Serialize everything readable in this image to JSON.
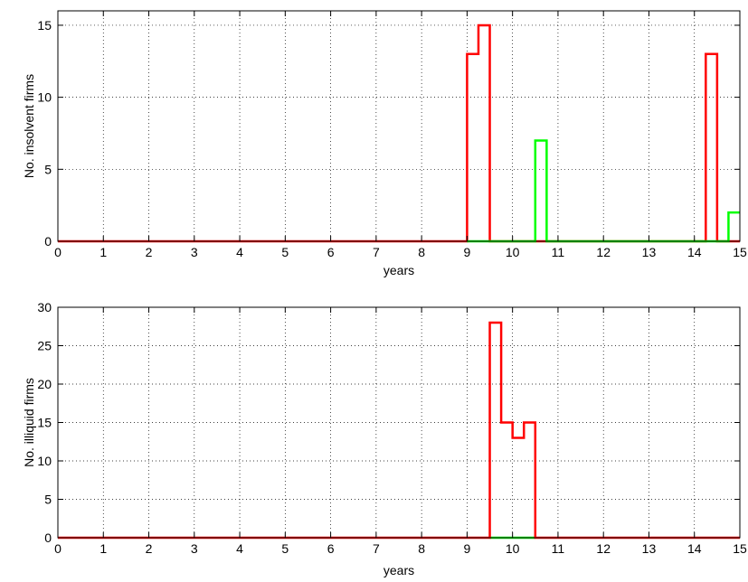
{
  "chart_data": [
    {
      "type": "line",
      "step": true,
      "title": "",
      "xlabel": "years",
      "ylabel": "No. insolvent firms",
      "xlim": [
        0,
        15
      ],
      "ylim": [
        0,
        16
      ],
      "xticks": [
        0,
        1,
        2,
        3,
        4,
        5,
        6,
        7,
        8,
        9,
        10,
        11,
        12,
        13,
        14,
        15
      ],
      "yticks": [
        0,
        5,
        10,
        15
      ],
      "grid": true,
      "series": [
        {
          "color": "#ff0000",
          "points": [
            [
              0,
              0
            ],
            [
              9,
              0
            ],
            [
              9,
              13
            ],
            [
              9.25,
              13
            ],
            [
              9.25,
              15
            ],
            [
              9.5,
              15
            ],
            [
              9.5,
              0
            ],
            [
              14.25,
              0
            ],
            [
              14.25,
              13
            ],
            [
              14.5,
              13
            ],
            [
              14.5,
              0
            ],
            [
              15,
              0
            ]
          ]
        },
        {
          "color": "#00ff00",
          "points": [
            [
              9,
              0
            ],
            [
              10.5,
              0
            ],
            [
              10.5,
              7
            ],
            [
              10.75,
              7
            ],
            [
              10.75,
              0
            ],
            [
              14.75,
              0
            ],
            [
              14.75,
              2
            ],
            [
              15,
              2
            ]
          ]
        }
      ]
    },
    {
      "type": "line",
      "step": true,
      "title": "",
      "xlabel": "years",
      "ylabel": "No. illiquid firms",
      "xlim": [
        0,
        15
      ],
      "ylim": [
        0,
        30
      ],
      "xticks": [
        0,
        1,
        2,
        3,
        4,
        5,
        6,
        7,
        8,
        9,
        10,
        11,
        12,
        13,
        14,
        15
      ],
      "yticks": [
        0,
        5,
        10,
        15,
        20,
        25,
        30
      ],
      "grid": true,
      "series": [
        {
          "color": "#00ff00",
          "points": [
            [
              9.5,
              0
            ],
            [
              10.5,
              0
            ]
          ]
        },
        {
          "color": "#ff0000",
          "points": [
            [
              0,
              0
            ],
            [
              9.5,
              0
            ],
            [
              9.5,
              28
            ],
            [
              9.75,
              28
            ],
            [
              9.75,
              15
            ],
            [
              10,
              15
            ],
            [
              10,
              13
            ],
            [
              10.25,
              13
            ],
            [
              10.25,
              15
            ],
            [
              10.5,
              15
            ],
            [
              10.5,
              0
            ],
            [
              15,
              0
            ]
          ]
        }
      ]
    }
  ]
}
